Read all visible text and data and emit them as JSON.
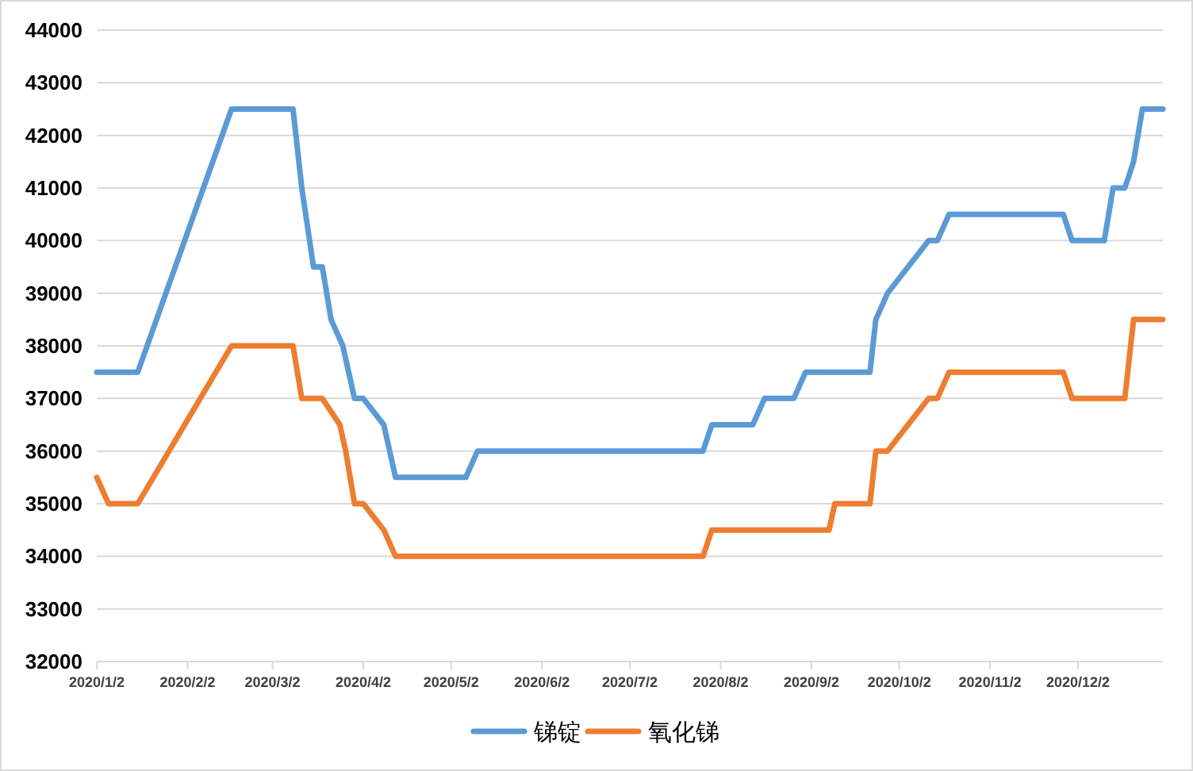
{
  "chart_data": {
    "type": "line",
    "xlim": [
      "2020-01-02",
      "2020-12-31"
    ],
    "xticks": [
      {
        "value": "2020-01-02",
        "label": "2020/1/2"
      },
      {
        "value": "2020-02-02",
        "label": "2020/2/2"
      },
      {
        "value": "2020-03-02",
        "label": "2020/3/2"
      },
      {
        "value": "2020-04-02",
        "label": "2020/4/2"
      },
      {
        "value": "2020-05-02",
        "label": "2020/5/2"
      },
      {
        "value": "2020-06-02",
        "label": "2020/6/2"
      },
      {
        "value": "2020-07-02",
        "label": "2020/7/2"
      },
      {
        "value": "2020-08-02",
        "label": "2020/8/2"
      },
      {
        "value": "2020-09-02",
        "label": "2020/9/2"
      },
      {
        "value": "2020-10-02",
        "label": "2020/10/2"
      },
      {
        "value": "2020-11-02",
        "label": "2020/11/2"
      },
      {
        "value": "2020-12-02",
        "label": "2020/12/2"
      }
    ],
    "ylim": [
      32000,
      44000
    ],
    "yticks": [
      32000,
      33000,
      34000,
      35000,
      36000,
      37000,
      38000,
      39000,
      40000,
      41000,
      42000,
      43000,
      44000
    ],
    "grid": "y",
    "legend": "bottom",
    "line_style": "solid",
    "series": [
      {
        "name": "锑锭",
        "color": "#5b9bd5",
        "x": [
          "2020-01-02",
          "2020-01-16",
          "2020-02-17",
          "2020-03-09",
          "2020-03-12",
          "2020-03-16",
          "2020-03-19",
          "2020-03-22",
          "2020-03-26",
          "2020-03-30",
          "2020-04-02",
          "2020-04-09",
          "2020-04-13",
          "2020-05-07",
          "2020-05-11",
          "2020-07-27",
          "2020-07-30",
          "2020-08-13",
          "2020-08-17",
          "2020-08-27",
          "2020-08-31",
          "2020-09-22",
          "2020-09-24",
          "2020-09-28",
          "2020-10-12",
          "2020-10-15",
          "2020-10-19",
          "2020-11-27",
          "2020-11-30",
          "2020-12-11",
          "2020-12-14",
          "2020-12-18",
          "2020-12-21",
          "2020-12-24",
          "2020-12-31"
        ],
        "values": [
          37500,
          37500,
          42500,
          42500,
          41000,
          39500,
          39500,
          38500,
          38000,
          37000,
          37000,
          36500,
          35500,
          35500,
          36000,
          36000,
          36500,
          36500,
          37000,
          37000,
          37500,
          37500,
          38500,
          39000,
          40000,
          40000,
          40500,
          40500,
          40000,
          40000,
          41000,
          41000,
          41500,
          42500,
          42500
        ]
      },
      {
        "name": "氧化锑",
        "color": "#ed7d31",
        "x": [
          "2020-01-02",
          "2020-01-06",
          "2020-01-16",
          "2020-02-17",
          "2020-03-09",
          "2020-03-12",
          "2020-03-19",
          "2020-03-25",
          "2020-03-27",
          "2020-03-30",
          "2020-04-02",
          "2020-04-09",
          "2020-04-13",
          "2020-07-27",
          "2020-07-30",
          "2020-09-08",
          "2020-09-10",
          "2020-09-22",
          "2020-09-24",
          "2020-09-28",
          "2020-10-12",
          "2020-10-15",
          "2020-10-19",
          "2020-11-27",
          "2020-11-30",
          "2020-12-18",
          "2020-12-21",
          "2020-12-31"
        ],
        "values": [
          35500,
          35000,
          35000,
          38000,
          38000,
          37000,
          37000,
          36500,
          36000,
          35000,
          35000,
          34500,
          34000,
          34000,
          34500,
          34500,
          35000,
          35000,
          36000,
          36000,
          37000,
          37000,
          37500,
          37500,
          37000,
          37000,
          38500,
          38500
        ]
      }
    ]
  }
}
